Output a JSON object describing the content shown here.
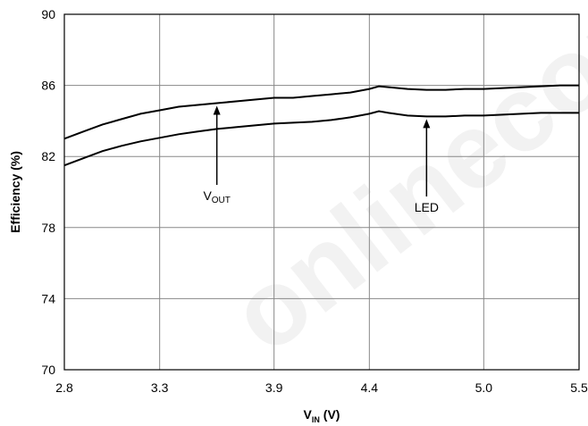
{
  "chart_data": {
    "type": "line",
    "title": "",
    "xlabel_main": "V",
    "xlabel_sub": "IN",
    "xlabel_unit": " (V)",
    "ylabel": "Efficiency (%)",
    "xlim": [
      2.8,
      5.5
    ],
    "ylim": [
      70,
      90
    ],
    "xticks": [
      2.8,
      3.3,
      3.9,
      4.4,
      5.0,
      5.5
    ],
    "xtick_labels": [
      "2.8",
      "3.3",
      "3.9",
      "4.4",
      "5.0",
      "5.5"
    ],
    "yticks": [
      70,
      74,
      78,
      82,
      86,
      90
    ],
    "ytick_labels": [
      "70",
      "74",
      "78",
      "82",
      "86",
      "90"
    ],
    "grid": true,
    "series": [
      {
        "name": "V_OUT",
        "x": [
          2.8,
          2.9,
          3.0,
          3.1,
          3.2,
          3.3,
          3.4,
          3.5,
          3.6,
          3.7,
          3.8,
          3.9,
          4.0,
          4.1,
          4.2,
          4.3,
          4.4,
          4.45,
          4.5,
          4.6,
          4.7,
          4.8,
          4.9,
          5.0,
          5.1,
          5.2,
          5.3,
          5.4,
          5.5
        ],
        "y": [
          83.0,
          83.4,
          83.8,
          84.1,
          84.4,
          84.6,
          84.8,
          84.9,
          85.0,
          85.1,
          85.2,
          85.3,
          85.3,
          85.4,
          85.5,
          85.6,
          85.8,
          85.95,
          85.9,
          85.8,
          85.75,
          85.75,
          85.8,
          85.8,
          85.85,
          85.9,
          85.95,
          86.0,
          86.0
        ],
        "annotation": {
          "main": "V",
          "sub": "OUT",
          "x": 3.6
        }
      },
      {
        "name": "LED",
        "x": [
          2.8,
          2.9,
          3.0,
          3.1,
          3.2,
          3.3,
          3.4,
          3.5,
          3.6,
          3.7,
          3.8,
          3.9,
          4.0,
          4.1,
          4.2,
          4.3,
          4.4,
          4.45,
          4.5,
          4.6,
          4.7,
          4.8,
          4.9,
          5.0,
          5.1,
          5.2,
          5.3,
          5.4,
          5.5
        ],
        "y": [
          81.5,
          81.9,
          82.3,
          82.6,
          82.85,
          83.05,
          83.25,
          83.4,
          83.55,
          83.65,
          83.75,
          83.85,
          83.9,
          83.95,
          84.05,
          84.2,
          84.4,
          84.55,
          84.45,
          84.3,
          84.25,
          84.25,
          84.3,
          84.3,
          84.35,
          84.4,
          84.45,
          84.45,
          84.45
        ],
        "annotation": {
          "main": "LED",
          "sub": "",
          "x": 4.7
        }
      }
    ]
  },
  "watermark": "onlinecomponents"
}
